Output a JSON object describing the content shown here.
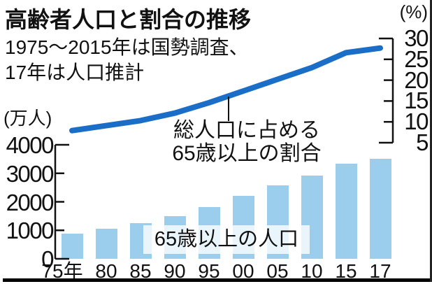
{
  "header": {
    "title": "高齢者人口と割合の推移",
    "note_line1": "1975〜2015年は国勢調査、",
    "note_line2": "17年は人口推計"
  },
  "annotations": {
    "line_label_line1": "総人口に占める",
    "line_label_line2": "65歳以上の割合",
    "bar_label": "65歳以上の人口"
  },
  "chart_data": {
    "type": "combo_bar_line",
    "categories": [
      "75年",
      "80",
      "85",
      "90",
      "95",
      "00",
      "05",
      "10",
      "15",
      "17"
    ],
    "series": [
      {
        "name": "65歳以上の人口",
        "type": "bar",
        "axis": "left",
        "unit": "万人",
        "color": "#9bcdec",
        "values": [
          887,
          1065,
          1247,
          1489,
          1826,
          2201,
          2567,
          2925,
          3342,
          3514
        ]
      },
      {
        "name": "総人口に占める65歳以上の割合",
        "type": "line",
        "axis": "right",
        "unit": "%",
        "color": "#1b6ec8",
        "values": [
          7.9,
          9.1,
          10.3,
          12.1,
          14.6,
          17.4,
          20.2,
          23.0,
          26.6,
          27.7
        ]
      }
    ],
    "left_axis": {
      "label": "(万人)",
      "ticks": [
        0,
        1000,
        2000,
        3000,
        4000
      ],
      "range": [
        0,
        4000
      ]
    },
    "right_axis": {
      "label": "(%)",
      "ticks": [
        5,
        10,
        15,
        20,
        25,
        30
      ],
      "range": [
        5,
        30
      ]
    },
    "grid": false,
    "legend": "inline annotations"
  },
  "colors": {
    "bar": "#9bcdec",
    "line": "#1b6ec8",
    "text": "#111111",
    "background": "#ffffff",
    "border": "#000000"
  }
}
